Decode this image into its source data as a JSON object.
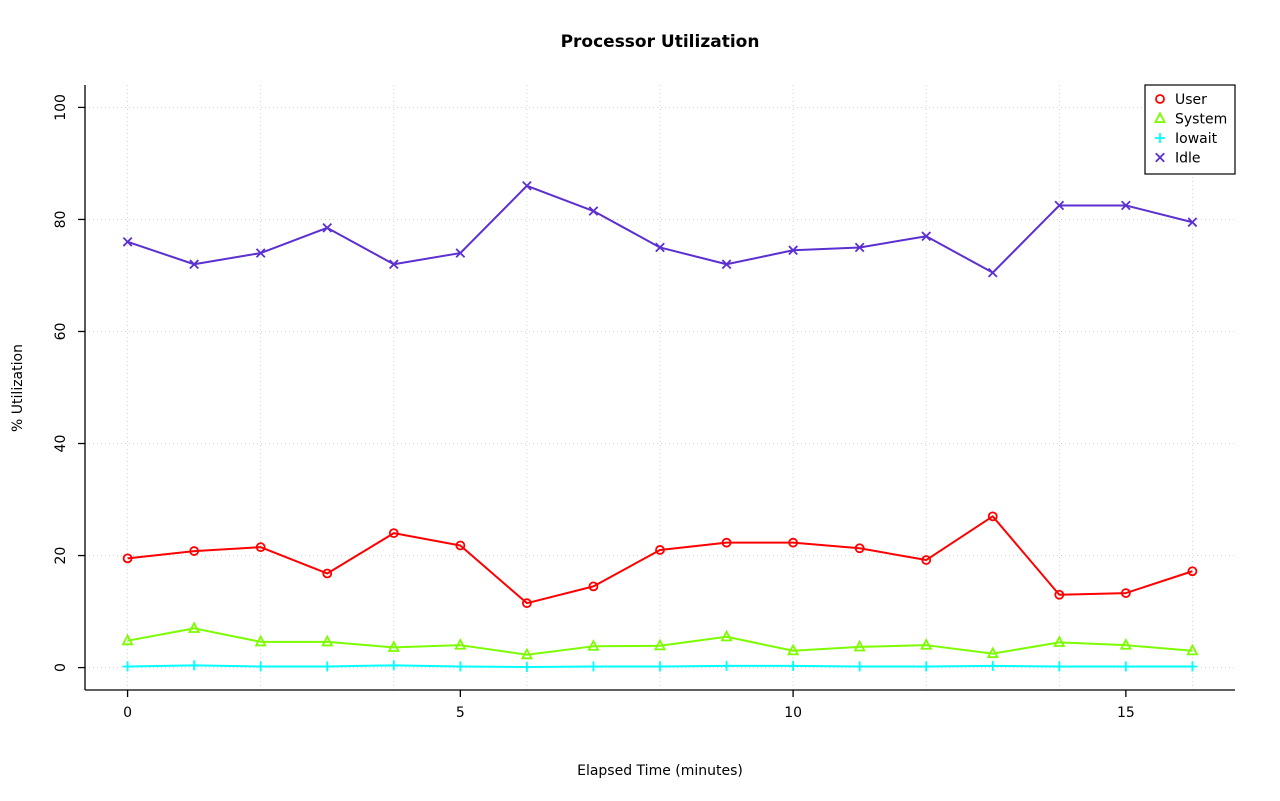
{
  "chart_data": {
    "type": "line",
    "title": "Processor Utilization",
    "xlabel": "Elapsed Time (minutes)",
    "ylabel": "% Utilization",
    "x": [
      0,
      1,
      2,
      3,
      4,
      5,
      6,
      7,
      8,
      9,
      10,
      11,
      12,
      13,
      14,
      15,
      16
    ],
    "xlim": [
      0,
      16
    ],
    "ylim": [
      0,
      100
    ],
    "x_ticks": [
      0,
      5,
      10,
      15
    ],
    "y_ticks": [
      0,
      20,
      40,
      60,
      80,
      100
    ],
    "grid": {
      "on": true,
      "x_step": 2,
      "y_step": 20,
      "color": "#d3d3d3",
      "style": "dotted"
    },
    "legend_position": "top-right",
    "axis_color": "#000000",
    "series": [
      {
        "name": "User",
        "color": "#ff0000",
        "marker": "circle",
        "values": [
          19.5,
          20.8,
          21.5,
          16.8,
          24.0,
          21.8,
          11.5,
          14.5,
          21.0,
          22.3,
          22.3,
          21.3,
          19.2,
          27.0,
          13.0,
          13.3,
          17.2
        ]
      },
      {
        "name": "System",
        "color": "#7cfc00",
        "marker": "triangle",
        "values": [
          4.8,
          7.0,
          4.6,
          4.6,
          3.6,
          4.0,
          2.3,
          3.8,
          3.9,
          5.5,
          3.0,
          3.7,
          4.0,
          2.5,
          4.5,
          4.0,
          3.0
        ]
      },
      {
        "name": "Iowait",
        "color": "#00ffff",
        "marker": "plus",
        "values": [
          0.2,
          0.4,
          0.2,
          0.2,
          0.4,
          0.2,
          0.1,
          0.2,
          0.2,
          0.3,
          0.3,
          0.2,
          0.2,
          0.3,
          0.2,
          0.2,
          0.2
        ]
      },
      {
        "name": "Idle",
        "color": "#5b2fd0",
        "marker": "x",
        "values": [
          76.0,
          72.0,
          74.0,
          78.5,
          72.0,
          74.0,
          86.0,
          81.5,
          75.0,
          72.0,
          74.5,
          75.0,
          77.0,
          70.5,
          82.5,
          82.5,
          79.5
        ]
      }
    ]
  }
}
